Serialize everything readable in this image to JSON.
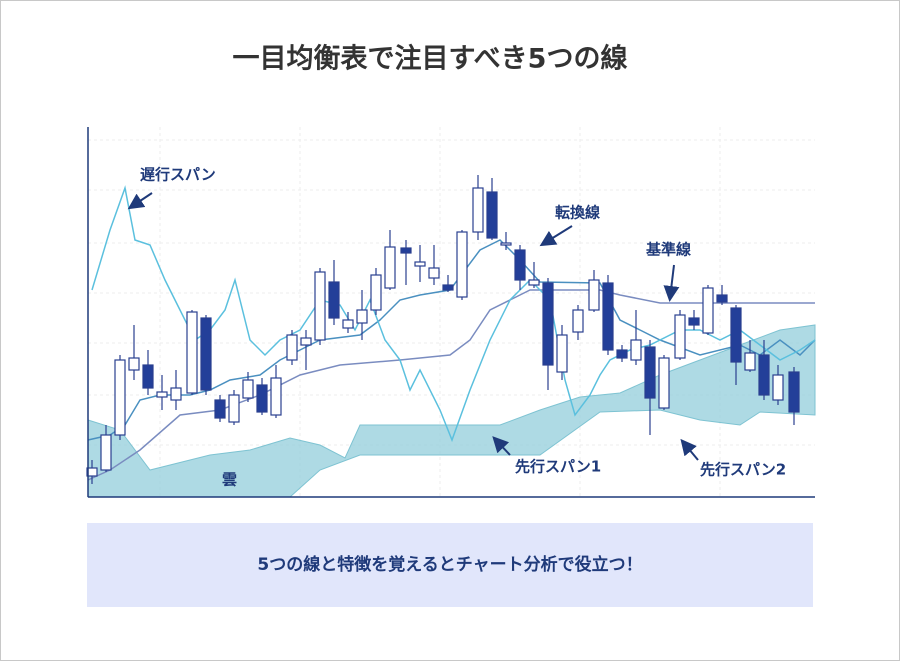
{
  "title": "一目均衡表で注目すべき5つの線",
  "labels": {
    "chikou": "遅行スパン",
    "tenkan": "転換線",
    "kijun": "基準線",
    "senkou1": "先行スパン1",
    "senkou2": "先行スパン2",
    "kumo": "雲"
  },
  "footer": "5つの線と特徴を覚えるとチャート分析で役立つ！"
}
